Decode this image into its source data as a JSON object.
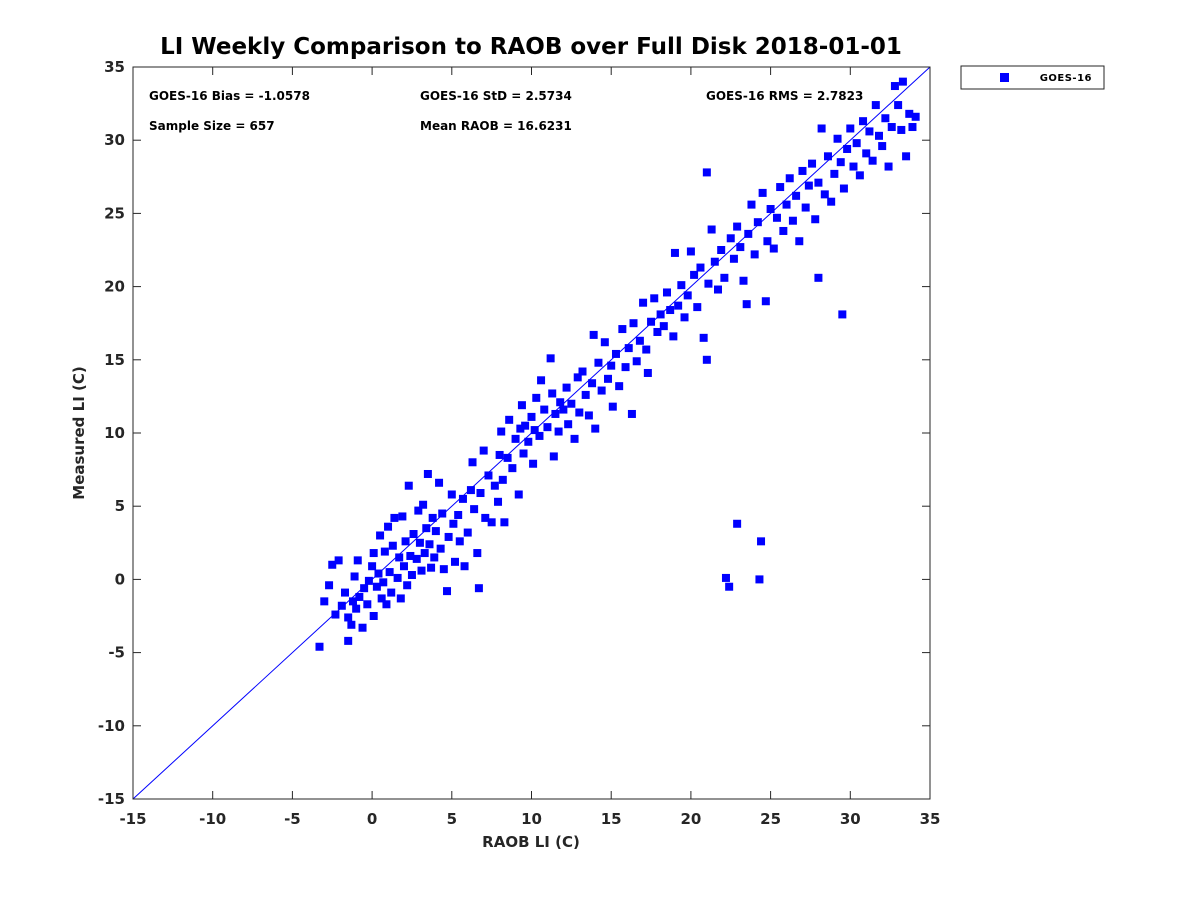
{
  "chart_data": {
    "type": "scatter",
    "title": "LI Weekly Comparison to RAOB over Full Disk 2018-01-01",
    "xlabel": "RAOB LI (C)",
    "ylabel": "Measured LI (C)",
    "xlim": [
      -15,
      35
    ],
    "ylim": [
      -15,
      35
    ],
    "xticks": [
      "-15",
      "-10",
      "-5",
      "0",
      "5",
      "10",
      "15",
      "20",
      "25",
      "30",
      "35"
    ],
    "yticks": [
      "-15",
      "-10",
      "-5",
      "0",
      "5",
      "10",
      "15",
      "20",
      "25",
      "30",
      "35"
    ],
    "grid": false,
    "legend": {
      "position": "top-right-outside",
      "entries": [
        "GOES-16"
      ]
    },
    "stats": {
      "bias": "GOES-16 Bias = -1.0578",
      "std": "GOES-16 StD = 2.5734",
      "rms": "GOES-16 RMS = 2.7823",
      "sample": "Sample Size = 657",
      "mean": "Mean RAOB = 16.6231"
    },
    "reference_line": {
      "label": "1:1",
      "from": [
        -15,
        -15
      ],
      "to": [
        35,
        35
      ]
    },
    "series": [
      {
        "name": "GOES-16",
        "color": "#0000ff",
        "marker": "square",
        "points": [
          [
            -3.3,
            -4.6
          ],
          [
            -1.5,
            -4.2
          ],
          [
            -3,
            -1.5
          ],
          [
            -2.7,
            -0.4
          ],
          [
            -2.5,
            1
          ],
          [
            -2.1,
            1.3
          ],
          [
            -2.3,
            -2.4
          ],
          [
            -1.9,
            -1.8
          ],
          [
            -1.7,
            -0.9
          ],
          [
            -1.5,
            -2.6
          ],
          [
            -1.3,
            -3.1
          ],
          [
            -1.2,
            -1.5
          ],
          [
            -1.1,
            0.2
          ],
          [
            -1,
            -2
          ],
          [
            -0.9,
            1.3
          ],
          [
            -0.8,
            -1.2
          ],
          [
            -0.6,
            -3.3
          ],
          [
            -0.5,
            -0.6
          ],
          [
            -0.3,
            -1.7
          ],
          [
            -0.2,
            -0.1
          ],
          [
            0,
            0.9
          ],
          [
            0.1,
            -2.5
          ],
          [
            0.1,
            1.8
          ],
          [
            0.3,
            -0.5
          ],
          [
            0.4,
            0.4
          ],
          [
            0.5,
            3
          ],
          [
            0.6,
            -1.3
          ],
          [
            0.7,
            -0.2
          ],
          [
            0.8,
            1.9
          ],
          [
            0.9,
            -1.7
          ],
          [
            1,
            3.6
          ],
          [
            1.1,
            0.5
          ],
          [
            1.2,
            -0.9
          ],
          [
            1.3,
            2.3
          ],
          [
            1.4,
            4.2
          ],
          [
            1.6,
            0.1
          ],
          [
            1.7,
            1.5
          ],
          [
            1.8,
            -1.3
          ],
          [
            1.9,
            4.3
          ],
          [
            2,
            0.9
          ],
          [
            2.1,
            2.6
          ],
          [
            2.2,
            -0.4
          ],
          [
            2.3,
            6.4
          ],
          [
            2.4,
            1.6
          ],
          [
            2.5,
            0.3
          ],
          [
            2.6,
            3.1
          ],
          [
            2.8,
            1.4
          ],
          [
            2.9,
            4.7
          ],
          [
            3,
            2.5
          ],
          [
            3.1,
            0.6
          ],
          [
            3.2,
            5.1
          ],
          [
            3.3,
            1.8
          ],
          [
            3.4,
            3.5
          ],
          [
            3.5,
            7.2
          ],
          [
            3.6,
            2.4
          ],
          [
            3.7,
            0.8
          ],
          [
            3.8,
            4.2
          ],
          [
            3.9,
            1.5
          ],
          [
            4,
            3.3
          ],
          [
            4.2,
            6.6
          ],
          [
            4.3,
            2.1
          ],
          [
            4.4,
            4.5
          ],
          [
            4.5,
            0.7
          ],
          [
            4.7,
            -0.8
          ],
          [
            4.8,
            2.9
          ],
          [
            5,
            5.8
          ],
          [
            5.1,
            3.8
          ],
          [
            5.2,
            1.2
          ],
          [
            5.4,
            4.4
          ],
          [
            5.5,
            2.6
          ],
          [
            5.7,
            5.5
          ],
          [
            5.8,
            0.9
          ],
          [
            6,
            3.2
          ],
          [
            6.2,
            6.1
          ],
          [
            6.3,
            8
          ],
          [
            6.4,
            4.8
          ],
          [
            6.6,
            1.8
          ],
          [
            6.7,
            -0.6
          ],
          [
            6.8,
            5.9
          ],
          [
            7,
            8.8
          ],
          [
            7.1,
            4.2
          ],
          [
            7.3,
            7.1
          ],
          [
            7.5,
            3.9
          ],
          [
            7.7,
            6.4
          ],
          [
            7.9,
            5.3
          ],
          [
            8,
            8.5
          ],
          [
            8.1,
            10.1
          ],
          [
            8.2,
            6.8
          ],
          [
            8.3,
            3.9
          ],
          [
            8.5,
            8.3
          ],
          [
            8.6,
            10.9
          ],
          [
            8.8,
            7.6
          ],
          [
            9,
            9.6
          ],
          [
            9.2,
            5.8
          ],
          [
            9.3,
            10.3
          ],
          [
            9.4,
            11.9
          ],
          [
            9.5,
            8.6
          ],
          [
            9.6,
            10.5
          ],
          [
            9.8,
            9.4
          ],
          [
            10,
            11.1
          ],
          [
            10.1,
            7.9
          ],
          [
            10.2,
            10.2
          ],
          [
            10.3,
            12.4
          ],
          [
            10.5,
            9.8
          ],
          [
            10.6,
            13.6
          ],
          [
            10.8,
            11.6
          ],
          [
            11,
            10.4
          ],
          [
            11.2,
            15.1
          ],
          [
            11.3,
            12.7
          ],
          [
            11.4,
            8.4
          ],
          [
            11.5,
            11.3
          ],
          [
            11.7,
            10.1
          ],
          [
            11.8,
            12.1
          ],
          [
            12,
            11.6
          ],
          [
            12.2,
            13.1
          ],
          [
            12.3,
            10.6
          ],
          [
            12.5,
            12
          ],
          [
            12.7,
            9.6
          ],
          [
            12.9,
            13.8
          ],
          [
            13,
            11.4
          ],
          [
            13.2,
            14.2
          ],
          [
            13.4,
            12.6
          ],
          [
            13.6,
            11.2
          ],
          [
            13.8,
            13.4
          ],
          [
            13.9,
            16.7
          ],
          [
            14,
            10.3
          ],
          [
            14.2,
            14.8
          ],
          [
            14.4,
            12.9
          ],
          [
            14.6,
            16.2
          ],
          [
            14.8,
            13.7
          ],
          [
            15,
            14.6
          ],
          [
            15.1,
            11.8
          ],
          [
            15.3,
            15.4
          ],
          [
            15.5,
            13.2
          ],
          [
            15.7,
            17.1
          ],
          [
            15.9,
            14.5
          ],
          [
            16.1,
            15.8
          ],
          [
            16.3,
            11.3
          ],
          [
            16.4,
            17.5
          ],
          [
            16.6,
            14.9
          ],
          [
            16.8,
            16.3
          ],
          [
            17,
            18.9
          ],
          [
            17.2,
            15.7
          ],
          [
            17.3,
            14.1
          ],
          [
            17.5,
            17.6
          ],
          [
            17.7,
            19.2
          ],
          [
            17.9,
            16.9
          ],
          [
            18.1,
            18.1
          ],
          [
            18.3,
            17.3
          ],
          [
            18.5,
            19.6
          ],
          [
            18.7,
            18.4
          ],
          [
            18.9,
            16.6
          ],
          [
            19,
            22.3
          ],
          [
            19.2,
            18.7
          ],
          [
            19.4,
            20.1
          ],
          [
            19.6,
            17.9
          ],
          [
            19.8,
            19.4
          ],
          [
            20,
            22.4
          ],
          [
            20.2,
            20.8
          ],
          [
            20.4,
            18.6
          ],
          [
            20.6,
            21.3
          ],
          [
            20.8,
            16.5
          ],
          [
            21,
            15
          ],
          [
            21,
            27.8
          ],
          [
            21.1,
            20.2
          ],
          [
            21.3,
            23.9
          ],
          [
            21.5,
            21.7
          ],
          [
            21.7,
            19.8
          ],
          [
            21.9,
            22.5
          ],
          [
            22.1,
            20.6
          ],
          [
            22.2,
            0.1
          ],
          [
            22.4,
            -0.5
          ],
          [
            22.5,
            23.3
          ],
          [
            22.7,
            21.9
          ],
          [
            22.9,
            3.8
          ],
          [
            22.9,
            24.1
          ],
          [
            23.1,
            22.7
          ],
          [
            23.3,
            20.4
          ],
          [
            23.5,
            18.8
          ],
          [
            23.6,
            23.6
          ],
          [
            23.8,
            25.6
          ],
          [
            24,
            22.2
          ],
          [
            24.2,
            24.4
          ],
          [
            24.3,
            0
          ],
          [
            24.4,
            2.6
          ],
          [
            24.5,
            26.4
          ],
          [
            24.7,
            19
          ],
          [
            24.8,
            23.1
          ],
          [
            25,
            25.3
          ],
          [
            25.2,
            22.6
          ],
          [
            25.4,
            24.7
          ],
          [
            25.6,
            26.8
          ],
          [
            25.8,
            23.8
          ],
          [
            26,
            25.6
          ],
          [
            26.2,
            27.4
          ],
          [
            26.4,
            24.5
          ],
          [
            26.6,
            26.2
          ],
          [
            26.8,
            23.1
          ],
          [
            27,
            27.9
          ],
          [
            27.2,
            25.4
          ],
          [
            27.4,
            26.9
          ],
          [
            27.6,
            28.4
          ],
          [
            27.8,
            24.6
          ],
          [
            28,
            20.6
          ],
          [
            28,
            27.1
          ],
          [
            28.2,
            30.8
          ],
          [
            28.4,
            26.3
          ],
          [
            28.6,
            28.9
          ],
          [
            28.8,
            25.8
          ],
          [
            29,
            27.7
          ],
          [
            29.2,
            30.1
          ],
          [
            29.4,
            28.5
          ],
          [
            29.5,
            18.1
          ],
          [
            29.6,
            26.7
          ],
          [
            29.8,
            29.4
          ],
          [
            30,
            30.8
          ],
          [
            30.2,
            28.2
          ],
          [
            30.4,
            29.8
          ],
          [
            30.6,
            27.6
          ],
          [
            30.8,
            31.3
          ],
          [
            31,
            29.1
          ],
          [
            31.2,
            30.6
          ],
          [
            31.4,
            28.6
          ],
          [
            31.6,
            32.4
          ],
          [
            31.8,
            30.3
          ],
          [
            32,
            29.6
          ],
          [
            32.2,
            31.5
          ],
          [
            32.4,
            28.2
          ],
          [
            32.6,
            30.9
          ],
          [
            32.8,
            33.7
          ],
          [
            33,
            32.4
          ],
          [
            33.2,
            30.7
          ],
          [
            33.3,
            34
          ],
          [
            33.5,
            28.9
          ],
          [
            33.7,
            31.8
          ],
          [
            33.9,
            30.9
          ],
          [
            34.1,
            31.6
          ]
        ]
      }
    ]
  }
}
